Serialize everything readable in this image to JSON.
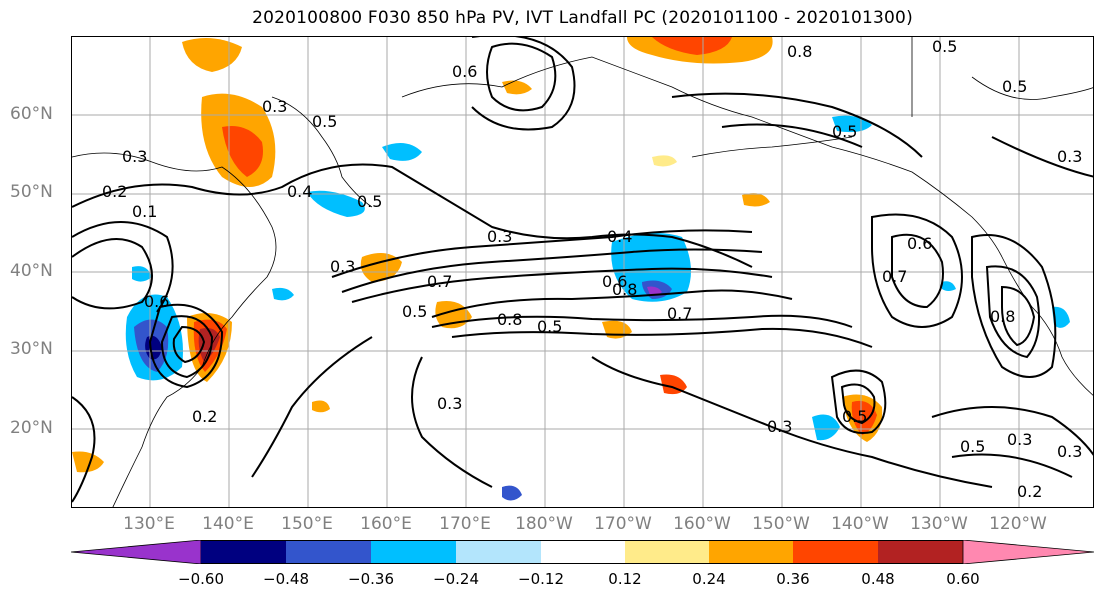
{
  "title": "2020100800 F030 850 hPa PV, IVT Landfall PC (2020101100 - 2020101300)",
  "lat_labels": [
    "60°N",
    "50°N",
    "40°N",
    "30°N",
    "20°N"
  ],
  "lon_labels": [
    "130°E",
    "140°E",
    "150°E",
    "160°E",
    "170°E",
    "180°W",
    "170°W",
    "160°W",
    "150°W",
    "140°W",
    "130°W",
    "120°W"
  ],
  "colorbar": {
    "tick_labels": [
      "−0.60",
      "−0.48",
      "−0.36",
      "−0.24",
      "−0.12",
      "0.12",
      "0.24",
      "0.36",
      "0.48",
      "0.60"
    ],
    "colors": [
      "#9933cc",
      "#000080",
      "#3355cc",
      "#00bfff",
      "#b3e5fc",
      "#ffffff",
      "#ffeb8a",
      "#ffa500",
      "#ff4500",
      "#b22222",
      "#ff88b0"
    ]
  },
  "contour_labels": [
    "0.3",
    "0.5",
    "0.4",
    "0.5",
    "0.6",
    "0.8",
    "0.5",
    "0.5",
    "0.3",
    "0.2",
    "0.3",
    "0.4",
    "0.3",
    "0.7",
    "0.6",
    "0.8",
    "0.7",
    "0.5",
    "0.8",
    "0.3",
    "0.6",
    "0.7",
    "0.5",
    "0.8",
    "0.3",
    "0.3",
    "0.2",
    "0.3",
    "0.5",
    "0.3",
    "0.2",
    "0.1",
    "0.6",
    "0.5",
    "0.5"
  ]
}
